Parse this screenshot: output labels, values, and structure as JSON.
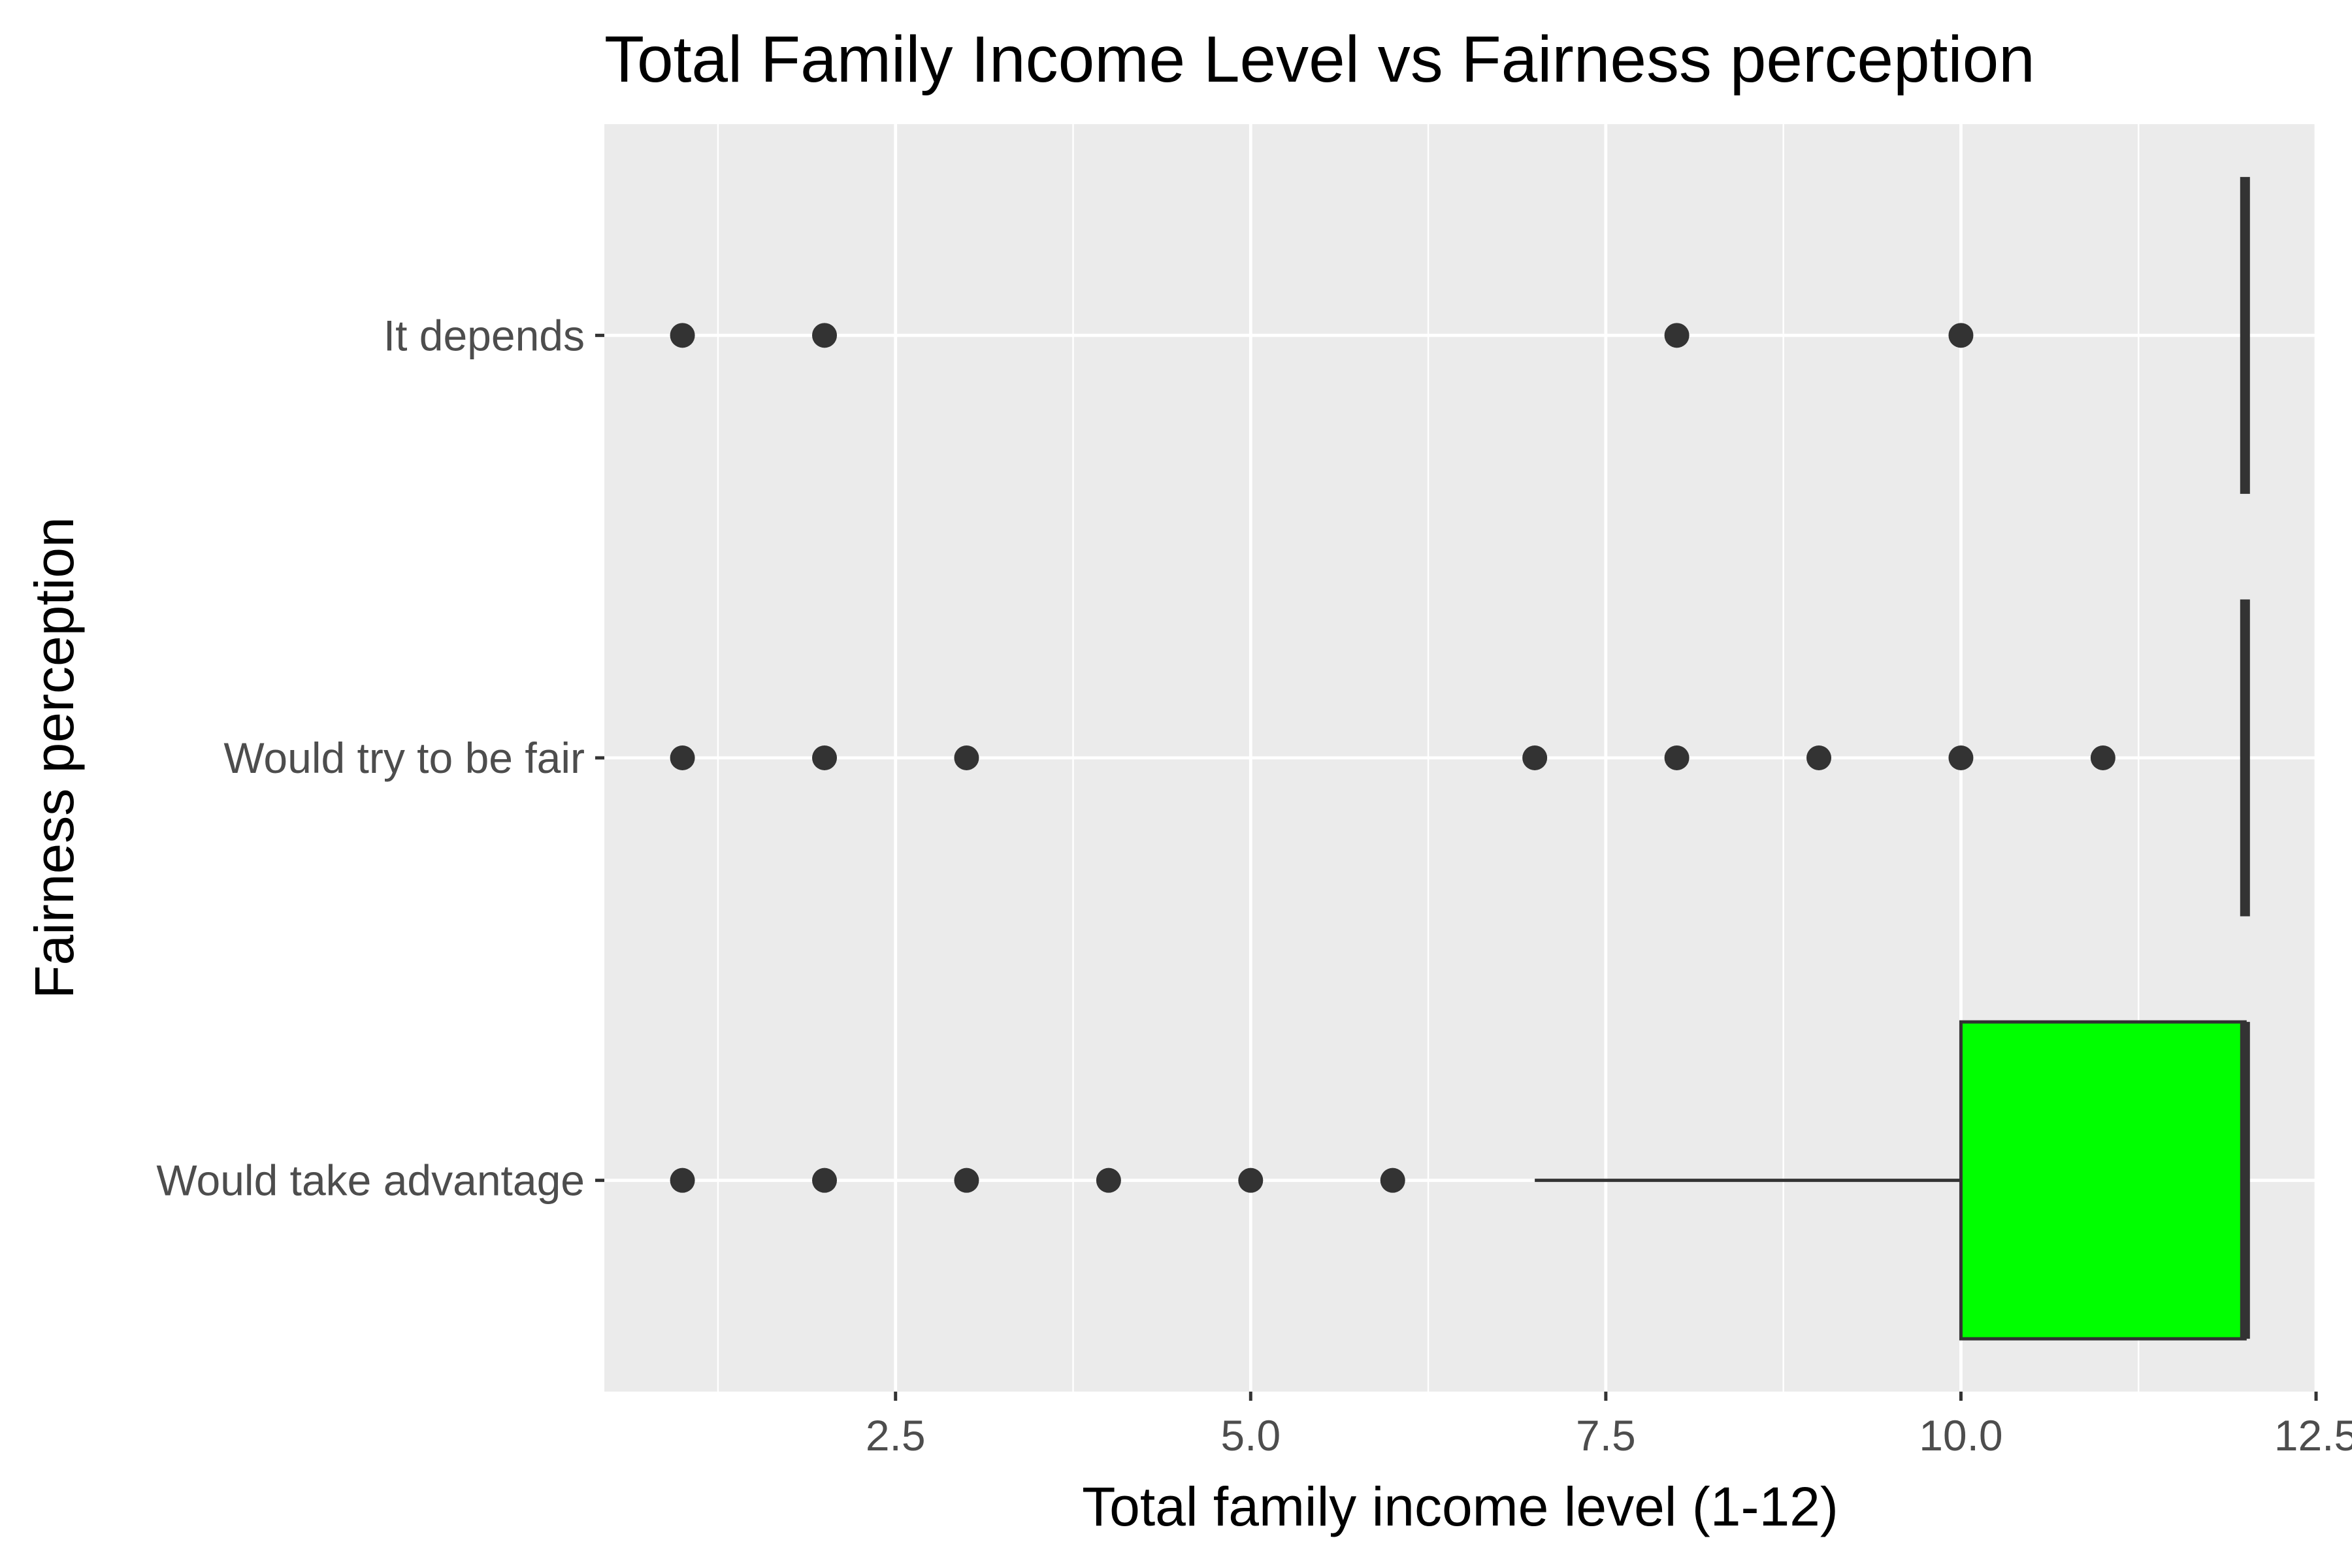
{
  "chart_data": {
    "type": "boxplot",
    "title": "Total Family Income Level vs Fairness perception",
    "xlabel": "Total family income level (1-12)",
    "ylabel": "Fairness perception",
    "xlim": [
      0.45,
      12.5
    ],
    "x_ticks": [
      2.5,
      5.0,
      7.5,
      10.0,
      12.5
    ],
    "x_tick_labels": [
      "2.5",
      "5.0",
      "7.5",
      "10.0",
      "12.5"
    ],
    "categories": [
      "It depends",
      "Would try to be fair",
      "Would take advantage"
    ],
    "grid": true,
    "legend": "none",
    "fill_color": "#00ff00",
    "panel_color": "#ebebeb",
    "boxes": [
      {
        "category": "It depends",
        "whisker_low": 12,
        "q1": 12,
        "median": 12,
        "q3": 12,
        "whisker_high": 12,
        "outliers": [
          1,
          2,
          8,
          10
        ]
      },
      {
        "category": "Would try to be fair",
        "whisker_low": 12,
        "q1": 12,
        "median": 12,
        "q3": 12,
        "whisker_high": 12,
        "outliers": [
          1,
          2,
          3,
          7,
          8,
          9,
          10,
          11
        ]
      },
      {
        "category": "Would take advantage",
        "whisker_low": 7,
        "q1": 10,
        "median": 12,
        "q3": 12,
        "whisker_high": 12,
        "outliers": [
          1,
          2,
          3,
          4,
          5,
          6
        ]
      }
    ]
  }
}
